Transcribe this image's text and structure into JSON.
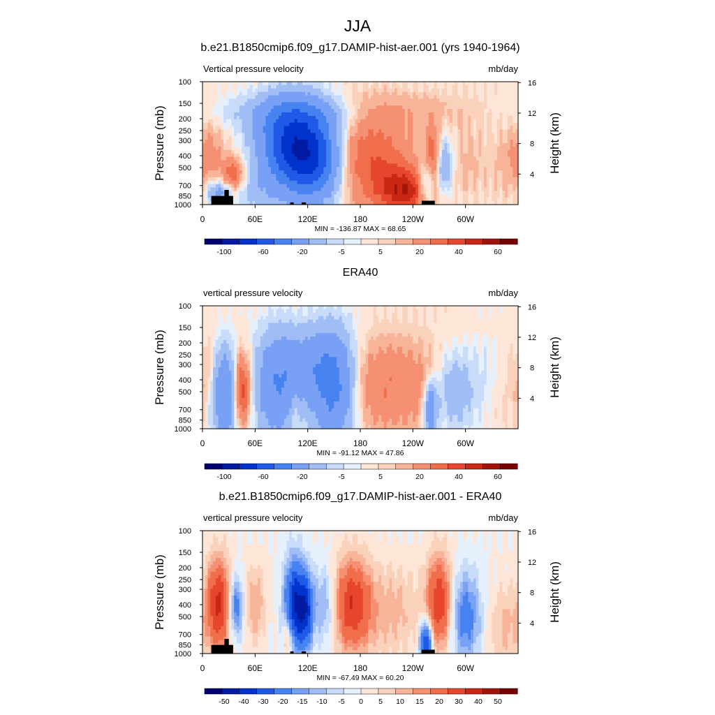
{
  "figure_title": "JJA",
  "chart_data": [
    {
      "type": "heatmap",
      "title": "b.e21.B1850cmip6.f09_g17.DAMIP-hist-aer.001 (yrs 1940-1964)",
      "variable": "Vertical pressure velocity",
      "units": "mb/day",
      "ylabel": "Pressure (mb)",
      "ylabel_right": "Height (km)",
      "x_ticks": [
        "0",
        "60E",
        "120E",
        "180",
        "120W",
        "60W"
      ],
      "p_ticks": [
        100,
        150,
        200,
        250,
        300,
        400,
        500,
        700,
        850,
        1000
      ],
      "h_ticks": [
        4,
        8,
        12,
        16
      ],
      "ylim": [
        1000,
        100
      ],
      "stats": "MIN = -136.87  MAX =  68.65",
      "colorbar_ticks": [
        "-100",
        "-60",
        "-20",
        "-5",
        "5",
        "20",
        "40",
        "60"
      ],
      "levels": [
        -120,
        -100,
        -80,
        -60,
        -40,
        -20,
        -10,
        -5,
        -2,
        2,
        5,
        10,
        20,
        30,
        40,
        50,
        60,
        70
      ],
      "extremes": {
        "min": -136.87,
        "max": 68.65
      },
      "topography": [
        [
          10,
          850
        ],
        [
          25,
          850
        ],
        [
          25,
          760
        ],
        [
          30,
          760
        ],
        [
          30,
          850
        ],
        [
          35,
          850
        ],
        [
          35,
          1000
        ],
        [
          10,
          1000
        ],
        [
          100,
          960
        ],
        [
          104,
          960
        ],
        [
          113,
          960
        ],
        [
          118,
          960
        ],
        [
          250,
          930
        ],
        [
          265,
          930
        ]
      ],
      "features": [
        {
          "lon": 35,
          "p": 560,
          "v": 28,
          "wl": 8,
          "wp": 0.2
        },
        {
          "lon": 18,
          "p": 800,
          "v": -25,
          "wl": 9,
          "wp": 0.15
        },
        {
          "lon": 8,
          "p": 380,
          "v": 12,
          "wl": 14,
          "wp": 0.4
        },
        {
          "lon": 65,
          "p": 820,
          "v": -10,
          "wl": 20,
          "wp": 0.25
        },
        {
          "lon": 100,
          "p": 330,
          "v": -75,
          "wl": 24,
          "wp": 0.55
        },
        {
          "lon": 130,
          "p": 430,
          "v": -62,
          "wl": 22,
          "wp": 0.55
        },
        {
          "lon": 110,
          "p": 180,
          "v": -20,
          "wl": 55,
          "wp": 0.25
        },
        {
          "lon": 190,
          "p": 430,
          "v": 30,
          "wl": 34,
          "wp": 0.6
        },
        {
          "lon": 232,
          "p": 780,
          "v": 42,
          "wl": 22,
          "wp": 0.3
        },
        {
          "lon": 210,
          "p": 170,
          "v": 8,
          "wl": 70,
          "wp": 0.25
        },
        {
          "lon": 255,
          "p": 700,
          "v": -32,
          "wl": 7,
          "wp": 0.3
        },
        {
          "lon": 263,
          "p": 400,
          "v": 26,
          "wl": 6,
          "wp": 0.4
        },
        {
          "lon": 275,
          "p": 500,
          "v": -25,
          "wl": 8,
          "wp": 0.4
        },
        {
          "lon": 300,
          "p": 450,
          "v": 6,
          "wl": 20,
          "wp": 0.5
        },
        {
          "lon": 350,
          "p": 500,
          "v": 5,
          "wl": 15,
          "wp": 0.5
        }
      ]
    },
    {
      "type": "heatmap",
      "title": "ERA40",
      "variable": "vertical pressure velocity",
      "units": "mb/day",
      "ylabel": "Pressure (mb)",
      "ylabel_right": "Height (km)",
      "x_ticks": [
        "0",
        "60E",
        "120E",
        "180",
        "120W",
        "60W"
      ],
      "p_ticks": [
        100,
        150,
        200,
        250,
        300,
        400,
        500,
        700,
        850,
        1000
      ],
      "h_ticks": [
        4,
        8,
        12,
        16
      ],
      "ylim": [
        1000,
        100
      ],
      "stats": "MIN = -91.12  MAX =  47.86",
      "colorbar_ticks": [
        "-100",
        "-60",
        "-20",
        "-5",
        "5",
        "20",
        "40",
        "60"
      ],
      "levels": [
        -120,
        -100,
        -80,
        -60,
        -40,
        -20,
        -10,
        -5,
        -2,
        2,
        5,
        10,
        20,
        30,
        40,
        50,
        60,
        70
      ],
      "extremes": {
        "min": -91.12,
        "max": 47.86
      },
      "topography": [],
      "features": [
        {
          "lon": 45,
          "p": 480,
          "v": 40,
          "wl": 7,
          "wp": 0.45
        },
        {
          "lon": 25,
          "p": 520,
          "v": -42,
          "wl": 10,
          "wp": 0.6
        },
        {
          "lon": 8,
          "p": 350,
          "v": 8,
          "wl": 10,
          "wp": 0.5
        },
        {
          "lon": 85,
          "p": 450,
          "v": -38,
          "wl": 18,
          "wp": 0.7
        },
        {
          "lon": 150,
          "p": 450,
          "v": -52,
          "wl": 18,
          "wp": 0.7
        },
        {
          "lon": 120,
          "p": 300,
          "v": -20,
          "wl": 20,
          "wp": 0.5
        },
        {
          "lon": 105,
          "p": 700,
          "v": 10,
          "wl": 6,
          "wp": 0.3
        },
        {
          "lon": 210,
          "p": 450,
          "v": 20,
          "wl": 45,
          "wp": 0.6
        },
        {
          "lon": 260,
          "p": 700,
          "v": -40,
          "wl": 5,
          "wp": 0.35
        },
        {
          "lon": 285,
          "p": 500,
          "v": -20,
          "wl": 15,
          "wp": 0.5
        },
        {
          "lon": 320,
          "p": 450,
          "v": -8,
          "wl": 20,
          "wp": 0.6
        },
        {
          "lon": 340,
          "p": 550,
          "v": 5,
          "wl": 20,
          "wp": 0.5
        }
      ]
    },
    {
      "type": "heatmap",
      "title": "b.e21.B1850cmip6.f09_g17.DAMIP-hist-aer.001 - ERA40",
      "variable": "vertical pressure velocity",
      "units": "mb/day",
      "ylabel": "Pressure (mb)",
      "ylabel_right": "Height (km)",
      "x_ticks": [
        "0",
        "60E",
        "120E",
        "180",
        "120W",
        "60W"
      ],
      "p_ticks": [
        100,
        150,
        200,
        250,
        300,
        400,
        500,
        700,
        850,
        1000
      ],
      "h_ticks": [
        4,
        8,
        12,
        16
      ],
      "ylim": [
        1000,
        100
      ],
      "stats": "MIN = -67.49  MAX =  60.20",
      "colorbar_ticks": [
        "-50",
        "-40",
        "-30",
        "-20",
        "-15",
        "-10",
        "-5",
        "0",
        "5",
        "10",
        "15",
        "20",
        "30",
        "40",
        "50"
      ],
      "levels": [
        -60,
        -50,
        -40,
        -30,
        -20,
        -15,
        -10,
        -5,
        0,
        5,
        10,
        15,
        20,
        30,
        40,
        50,
        60
      ],
      "extremes": {
        "min": -67.49,
        "max": 60.2
      },
      "topography": [
        [
          10,
          850
        ],
        [
          25,
          850
        ],
        [
          25,
          760
        ],
        [
          30,
          760
        ],
        [
          30,
          850
        ],
        [
          35,
          850
        ],
        [
          35,
          1000
        ],
        [
          10,
          1000
        ],
        [
          100,
          960
        ],
        [
          104,
          960
        ],
        [
          113,
          960
        ],
        [
          118,
          960
        ],
        [
          250,
          930
        ],
        [
          265,
          930
        ]
      ],
      "features": [
        {
          "lon": 18,
          "p": 400,
          "v": 42,
          "wl": 10,
          "wp": 0.6
        },
        {
          "lon": 38,
          "p": 420,
          "v": -28,
          "wl": 6,
          "wp": 0.4
        },
        {
          "lon": 60,
          "p": 400,
          "v": 15,
          "wl": 8,
          "wp": 0.5
        },
        {
          "lon": 105,
          "p": 400,
          "v": -48,
          "wl": 8,
          "wp": 0.6
        },
        {
          "lon": 118,
          "p": 450,
          "v": -38,
          "wl": 6,
          "wp": 0.5
        },
        {
          "lon": 98,
          "p": 750,
          "v": 20,
          "wl": 4,
          "wp": 0.3
        },
        {
          "lon": 140,
          "p": 400,
          "v": -18,
          "wl": 10,
          "wp": 0.5
        },
        {
          "lon": 170,
          "p": 400,
          "v": 38,
          "wl": 15,
          "wp": 0.6
        },
        {
          "lon": 215,
          "p": 450,
          "v": 12,
          "wl": 25,
          "wp": 0.6
        },
        {
          "lon": 255,
          "p": 800,
          "v": -45,
          "wl": 5,
          "wp": 0.3
        },
        {
          "lon": 270,
          "p": 380,
          "v": 38,
          "wl": 10,
          "wp": 0.6
        },
        {
          "lon": 300,
          "p": 500,
          "v": -25,
          "wl": 12,
          "wp": 0.6
        },
        {
          "lon": 345,
          "p": 600,
          "v": 12,
          "wl": 12,
          "wp": 0.5
        }
      ]
    }
  ],
  "colors": {
    "abs_palette": [
      "#00006e",
      "#001aa2",
      "#0033cc",
      "#1e5ae6",
      "#4682f0",
      "#78a0f5",
      "#a0bef5",
      "#c8dcfa",
      "#e6f0fc",
      "#fde6d8",
      "#fad2bc",
      "#f7b499",
      "#f59073",
      "#f06e4b",
      "#e6462d",
      "#c82814",
      "#a0140a",
      "#780000"
    ],
    "diff_palette": [
      "#00006e",
      "#001aa2",
      "#0033cc",
      "#1e5ae6",
      "#4682f0",
      "#78a0f5",
      "#a0bef5",
      "#c8dcfa",
      "#e6f0fc",
      "#fde6d8",
      "#fad2bc",
      "#f7b499",
      "#f59073",
      "#f06e4b",
      "#e6462d",
      "#c82814",
      "#a0140a",
      "#780000"
    ],
    "topography": "#000000"
  }
}
